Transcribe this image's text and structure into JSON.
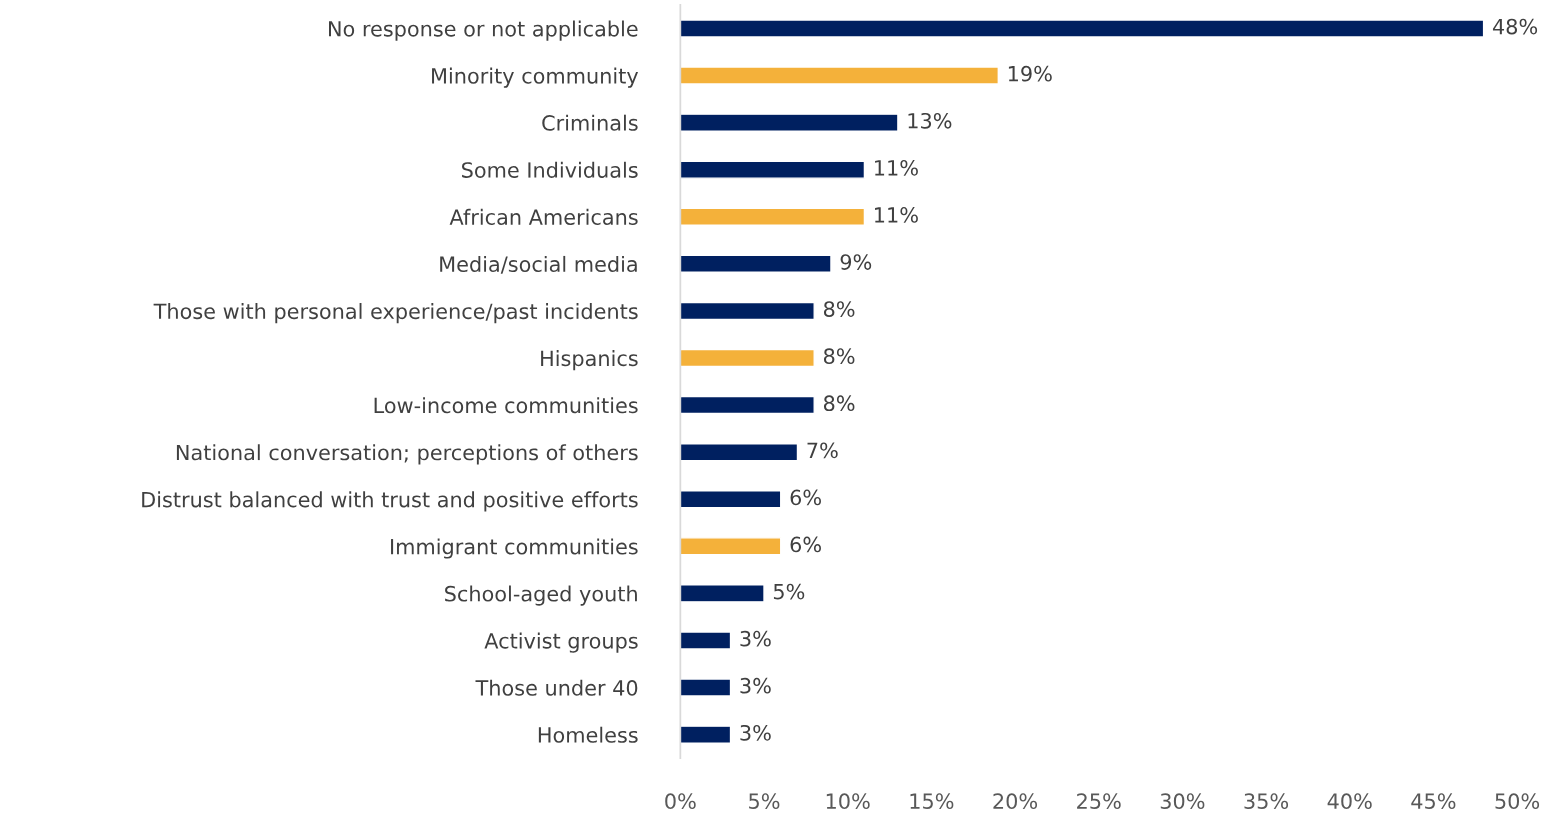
{
  "chart_data": {
    "type": "bar",
    "orientation": "horizontal",
    "categories": [
      "No response or not applicable",
      "Minority community",
      "Criminals",
      "Some Individuals",
      "African Americans",
      "Media/social media",
      "Those with personal experience/past incidents",
      "Hispanics",
      "Low-income communities",
      "National conversation; perceptions of others",
      "Distrust balanced with trust and positive efforts",
      "Immigrant communities",
      "School-aged youth",
      "Activist groups",
      "Those under 40",
      "Homeless"
    ],
    "values": [
      48,
      19,
      13,
      11,
      11,
      9,
      8,
      8,
      8,
      7,
      6,
      6,
      5,
      3,
      3,
      3
    ],
    "value_labels": [
      "48%",
      "19%",
      "13%",
      "11%",
      "11%",
      "9%",
      "8%",
      "8%",
      "8%",
      "7%",
      "6%",
      "6%",
      "5%",
      "3%",
      "3%",
      "3%"
    ],
    "colors": [
      "#002060",
      "#f4b13a",
      "#002060",
      "#002060",
      "#f4b13a",
      "#002060",
      "#002060",
      "#f4b13a",
      "#002060",
      "#002060",
      "#002060",
      "#f4b13a",
      "#002060",
      "#002060",
      "#002060",
      "#002060"
    ],
    "xlim": [
      0,
      50
    ],
    "xticks": [
      {
        "value": 0,
        "label": "0%"
      },
      {
        "value": 5,
        "label": "5%"
      },
      {
        "value": 10,
        "label": "10%"
      },
      {
        "value": 15,
        "label": "15%"
      },
      {
        "value": 20,
        "label": "20%"
      },
      {
        "value": 25,
        "label": "25%"
      },
      {
        "value": 30,
        "label": "30%"
      },
      {
        "value": 35,
        "label": "35%"
      },
      {
        "value": 40,
        "label": "40%"
      },
      {
        "value": 45,
        "label": "45%"
      },
      {
        "value": 50,
        "label": "50%"
      }
    ],
    "grid": false,
    "legend": false
  }
}
